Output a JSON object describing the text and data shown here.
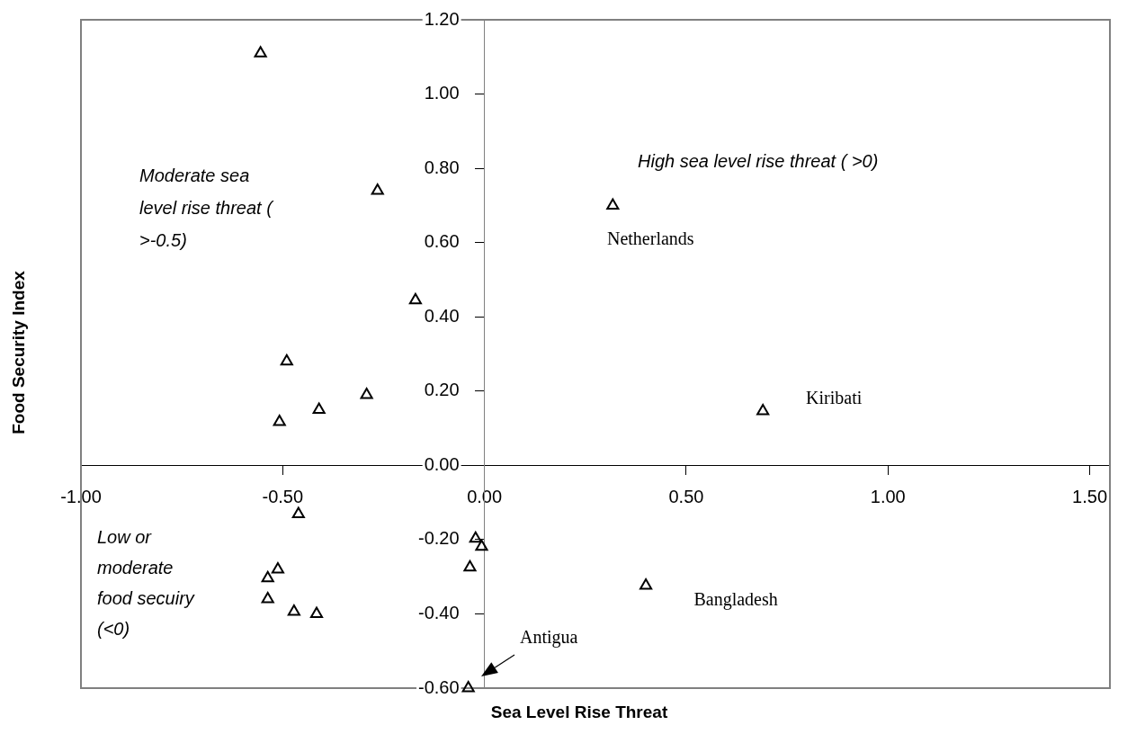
{
  "chart_data": {
    "type": "scatter",
    "xlabel": "Sea Level Rise Threat",
    "ylabel": "Food Security Index",
    "x": [
      -0.555,
      -0.265,
      0.318,
      -0.171,
      -0.49,
      -0.292,
      -0.41,
      -0.508,
      0.69,
      -0.461,
      -0.022,
      -0.007,
      -0.512,
      -0.537,
      -0.036,
      -0.537,
      -0.472,
      -0.416,
      0.4,
      -0.04
    ],
    "series": [
      {
        "color": "#000000",
        "values": [
          1.11,
          0.74,
          0.7,
          0.445,
          0.28,
          0.19,
          0.15,
          0.117,
          0.146,
          -0.131,
          -0.197,
          -0.219,
          -0.28,
          -0.304,
          -0.275,
          -0.36,
          -0.394,
          -0.4,
          -0.324,
          -0.6
        ]
      }
    ],
    "marker": "triangle",
    "xlim": [
      -1.0,
      1.55
    ],
    "xticks": [
      {
        "value": -1,
        "label": "-1.00"
      },
      {
        "value": -0.5,
        "label": "-0.50"
      },
      {
        "value": 0,
        "label": "0.00"
      },
      {
        "value": 0.5,
        "label": "0.50"
      },
      {
        "value": 1,
        "label": "1.00"
      },
      {
        "value": 1.5,
        "label": "1.50"
      }
    ],
    "ylim": [
      -0.6,
      1.2
    ],
    "yticks": [
      {
        "value": -0.6,
        "label": "-0.60"
      },
      {
        "value": -0.4,
        "label": "-0.40"
      },
      {
        "value": -0.2,
        "label": "-0.20"
      },
      {
        "value": 0,
        "label": "0.00"
      },
      {
        "value": 0.2,
        "label": "0.20"
      },
      {
        "value": 0.4,
        "label": "0.40"
      },
      {
        "value": 0.6,
        "label": "0.60"
      },
      {
        "value": 0.8,
        "label": "0.80"
      },
      {
        "value": 1,
        "label": "1.00"
      },
      {
        "value": 1.2,
        "label": "1.20"
      }
    ],
    "annotations": [
      "High sea level rise threat ( >0)",
      "Moderate sea level rise threat ( >-0.5)",
      "Low or moderate food secuiry (<0)",
      {
        "text": "Netherlands",
        "x": 0.318,
        "y": 0.7
      },
      {
        "text": "Kiribati",
        "x": 0.69,
        "y": 0.146
      },
      {
        "text": "Bangladesh",
        "x": 0.4,
        "y": -0.324
      },
      "Antigua"
    ]
  }
}
